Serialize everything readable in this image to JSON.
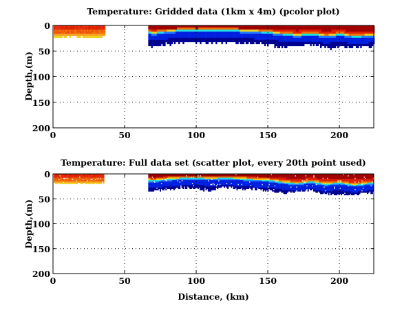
{
  "colors": {
    "hot": "#a00000",
    "red": "#e02000",
    "orange": "#f07000",
    "yellow": "#f0d020",
    "cyan": "#20e0e0",
    "lightblue": "#2080ff",
    "blue": "#0020e0",
    "darkblue": "#000090"
  },
  "chart_data": [
    {
      "type": "heatmap",
      "title": "Temperature: Gridded data (1km x 4m) (pcolor plot)",
      "xlabel": "",
      "ylabel": "Depth,(m)",
      "xlim": [
        0,
        224
      ],
      "ylim": [
        200,
        0
      ],
      "xticks": [
        "0",
        "50",
        "100",
        "150",
        "200"
      ],
      "xtick_values": [
        0,
        50,
        100,
        150,
        200
      ],
      "yticks": [
        "0",
        "50",
        "100",
        "150",
        "200"
      ],
      "ytick_values": [
        0,
        50,
        100,
        150,
        200
      ],
      "grid": true,
      "segments": [
        {
          "x_start": 0.5,
          "x_end": 36.5,
          "max_depth": 22,
          "profile": "warm"
        },
        {
          "x_start": 66.5,
          "x_end": 224,
          "max_depth": 44,
          "profile": "stratified"
        }
      ],
      "thermocline_depth_km": [
        [
          66,
          12
        ],
        [
          70,
          14
        ],
        [
          80,
          10
        ],
        [
          90,
          8
        ],
        [
          100,
          9
        ],
        [
          110,
          8
        ],
        [
          120,
          8
        ],
        [
          130,
          9
        ],
        [
          140,
          10
        ],
        [
          150,
          12
        ],
        [
          160,
          15
        ],
        [
          170,
          18
        ],
        [
          180,
          15
        ],
        [
          190,
          19
        ],
        [
          200,
          16
        ],
        [
          210,
          20
        ],
        [
          220,
          18
        ],
        [
          224,
          18
        ]
      ],
      "bottom_depth_km": [
        [
          66,
          40
        ],
        [
          80,
          34
        ],
        [
          90,
          32
        ],
        [
          100,
          30
        ],
        [
          110,
          33
        ],
        [
          120,
          30
        ],
        [
          130,
          34
        ],
        [
          140,
          32
        ],
        [
          150,
          36
        ],
        [
          160,
          40
        ],
        [
          170,
          38
        ],
        [
          180,
          34
        ],
        [
          190,
          42
        ],
        [
          200,
          40
        ],
        [
          210,
          42
        ],
        [
          220,
          38
        ],
        [
          224,
          38
        ]
      ]
    },
    {
      "type": "scatter",
      "title": "Temperature: Full data set (scatter plot, every 20th point used)",
      "xlabel": "Distance, (km)",
      "ylabel": "Depth,(m)",
      "xlim": [
        0,
        224
      ],
      "ylim": [
        200,
        0
      ],
      "xticks": [
        "0",
        "50",
        "100",
        "150",
        "200"
      ],
      "xtick_values": [
        0,
        50,
        100,
        150,
        200
      ],
      "yticks": [
        "0",
        "50",
        "100",
        "150",
        "200"
      ],
      "ytick_values": [
        0,
        50,
        100,
        150,
        200
      ],
      "grid": true,
      "segments": [
        {
          "x_start": 0.5,
          "x_end": 35,
          "max_depth": 20,
          "profile": "warm"
        },
        {
          "x_start": 66.5,
          "x_end": 224,
          "max_depth": 40,
          "profile": "stratified"
        }
      ],
      "thermocline_depth_km": [
        [
          66,
          12
        ],
        [
          70,
          13
        ],
        [
          80,
          10
        ],
        [
          90,
          8
        ],
        [
          100,
          8
        ],
        [
          110,
          9
        ],
        [
          120,
          8
        ],
        [
          130,
          9
        ],
        [
          140,
          11
        ],
        [
          150,
          12
        ],
        [
          160,
          16
        ],
        [
          170,
          19
        ],
        [
          180,
          15
        ],
        [
          190,
          20
        ],
        [
          200,
          17
        ],
        [
          210,
          22
        ],
        [
          220,
          18
        ],
        [
          224,
          18
        ]
      ],
      "bottom_depth_km": [
        [
          66,
          34
        ],
        [
          80,
          30
        ],
        [
          90,
          26
        ],
        [
          100,
          28
        ],
        [
          110,
          32
        ],
        [
          120,
          24
        ],
        [
          130,
          30
        ],
        [
          140,
          28
        ],
        [
          150,
          32
        ],
        [
          160,
          38
        ],
        [
          170,
          34
        ],
        [
          180,
          30
        ],
        [
          190,
          38
        ],
        [
          200,
          40
        ],
        [
          210,
          42
        ],
        [
          220,
          36
        ],
        [
          224,
          36
        ]
      ]
    }
  ]
}
